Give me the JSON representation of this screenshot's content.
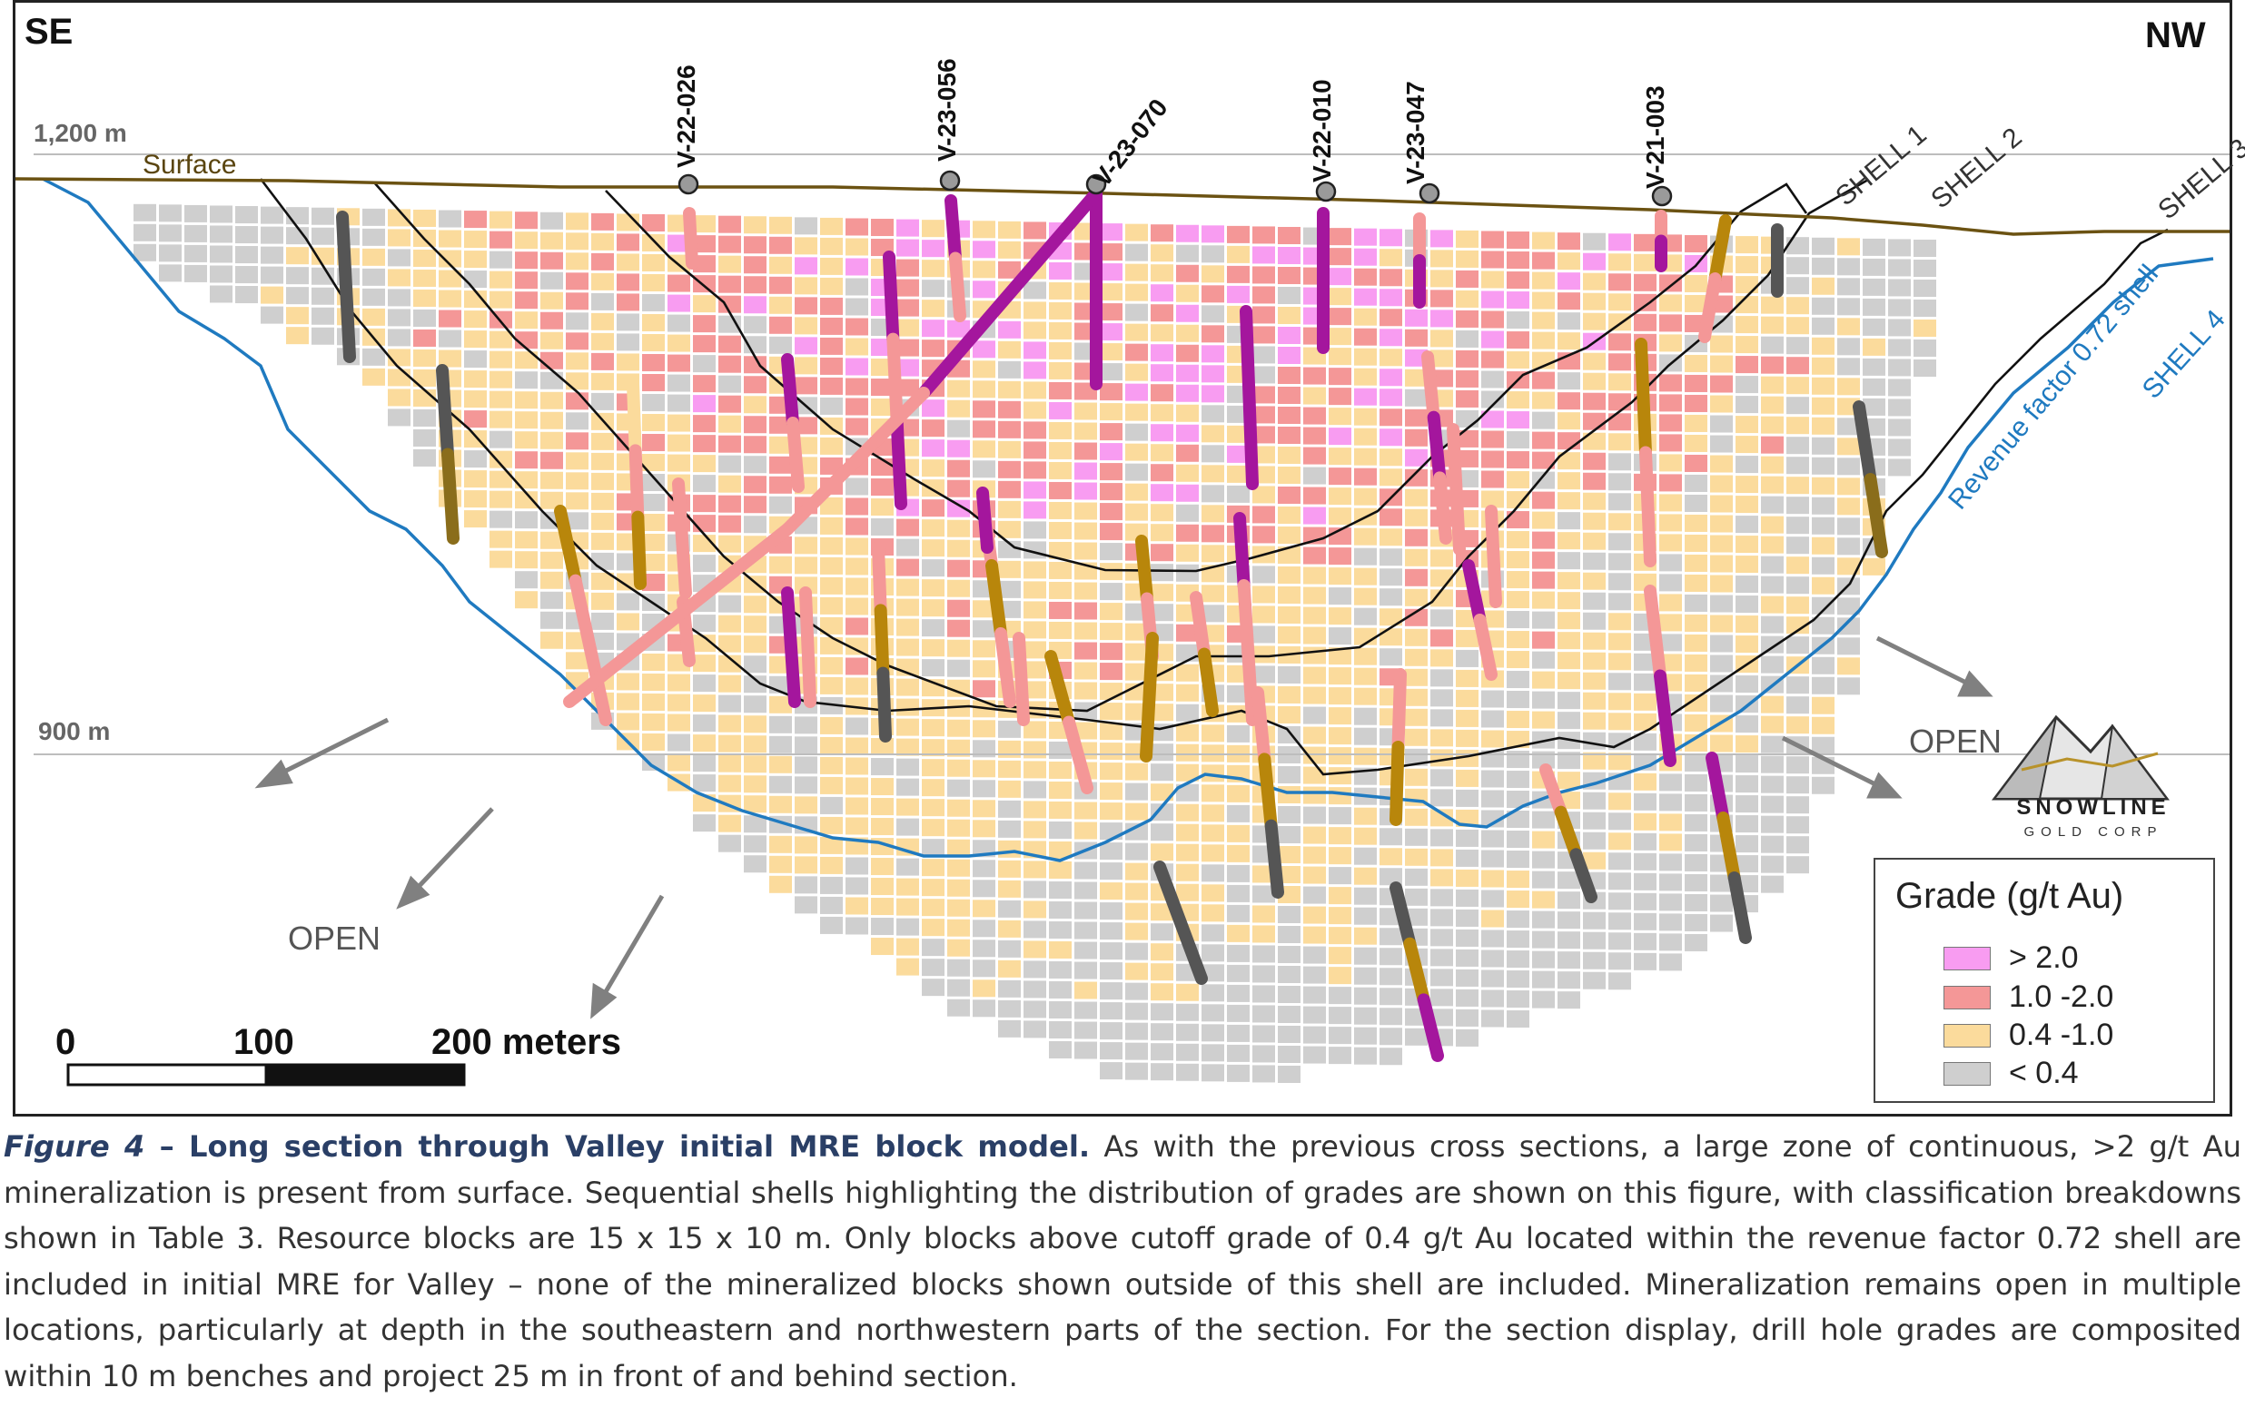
{
  "orientation": {
    "left": "SE",
    "right": "NW"
  },
  "elevations": [
    {
      "label": "1,200 m",
      "value": 1200
    },
    {
      "label": "900 m",
      "value": 900
    }
  ],
  "surface_label": "Surface",
  "drill_holes": [
    "V-22-026",
    "V-23-056",
    "V-23-070",
    "V-22-010",
    "V-23-047",
    "V-21-003"
  ],
  "shells": [
    "SHELL 1",
    "SHELL 2",
    "SHELL 3",
    "SHELL 4"
  ],
  "revenue_shell_label": "Revenue factor 0.72 shell",
  "open_label": "OPEN",
  "scale_bar": {
    "ticks": [
      "0",
      "100",
      "200 meters"
    ]
  },
  "legend": {
    "title": "Grade (g/t Au)",
    "items": [
      {
        "label": "> 2.0",
        "color": "#f89cf1"
      },
      {
        "label": "1.0 -2.0",
        "color": "#f49797"
      },
      {
        "label": "0.4 -1.0",
        "color": "#fbdb9c"
      },
      {
        "label": "< 0.4",
        "color": "#cfcfcf"
      }
    ]
  },
  "logo": {
    "name": "SNOWLINE",
    "sub": "GOLD CORP"
  },
  "caption": {
    "figure_number": "Figure 4",
    "separator": " – ",
    "title": "Long section through Valley initial MRE block model.",
    "text": " As with the previous cross sections, a large zone of continuous, >2 g/t Au mineralization is present from surface. Sequential shells highlighting the distribution of grades are shown on this figure, with classification breakdowns shown in Table 3. Resource blocks are 15 x 15 x 10 m. Only blocks above cutoff grade of 0.4 g/t Au located within the revenue factor 0.72 shell are included in initial MRE for Valley – none of the mineralized blocks shown outside of this shell are included. Mineralization remains open in multiple locations, particularly at depth in the southeastern and northwestern parts of the section. For the section display, drill hole grades are composited within 10 m benches and project 25 m in front of and behind section."
  }
}
